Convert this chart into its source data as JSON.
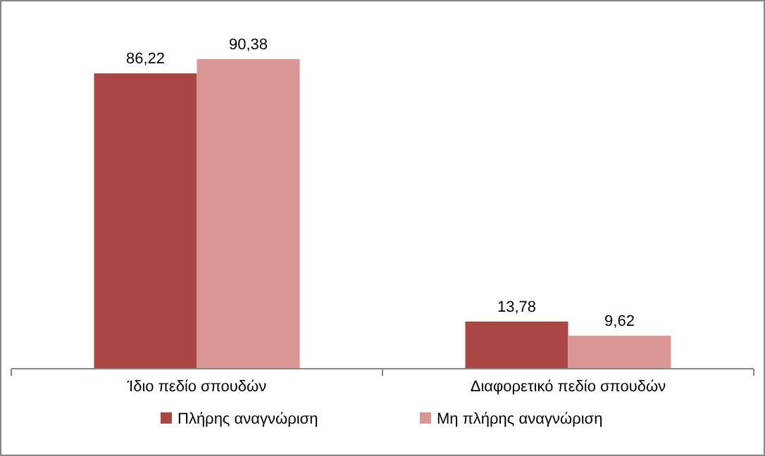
{
  "chart_data": {
    "type": "bar",
    "categories": [
      "Ίδιο πεδίο σπουδών",
      "Διαφορετικό πεδίο σπουδών"
    ],
    "series": [
      {
        "name": "Πλήρης αναγνώριση",
        "color": "#aa4643",
        "values": [
          86.22,
          13.78
        ],
        "value_labels": [
          "86,22",
          "13,78"
        ]
      },
      {
        "name": "Μη πλήρης αναγνώριση",
        "color": "#d99694",
        "values": [
          90.38,
          9.62
        ],
        "value_labels": [
          "90,38",
          "9,62"
        ]
      }
    ],
    "legend": "bottom",
    "tick_labels": "x"
  }
}
